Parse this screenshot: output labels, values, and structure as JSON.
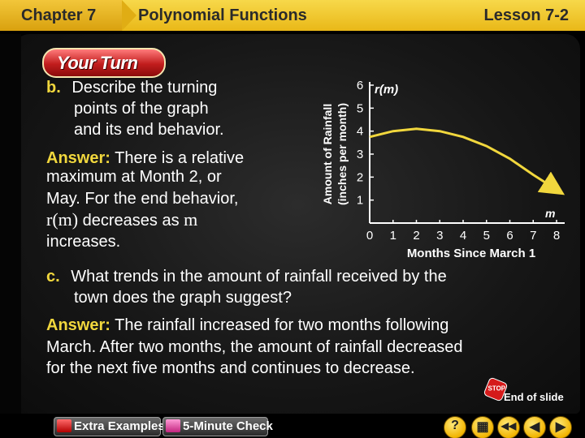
{
  "header": {
    "chapter": "Chapter 7",
    "title": "Polynomial Functions",
    "lesson": "Lesson 7-2"
  },
  "your_turn": "Your Turn",
  "part_b": {
    "label": "b.",
    "lines": [
      "Describe the turning",
      "points of the graph",
      "and its end behavior."
    ],
    "answer_label": "Answer:",
    "answer_lines": [
      "There is a relative",
      "maximum at Month 2, or",
      "May. For the end behavior,"
    ],
    "answer_math": "r(m)",
    "answer_mid": " decreases as ",
    "answer_math2": "m",
    "answer_last": "increases."
  },
  "part_c": {
    "label": "c.",
    "lines": [
      "What trends in the amount of rainfall received by the",
      "town does the graph suggest?"
    ],
    "answer_label": "Answer:",
    "answer_lines": [
      "The rainfall increased for two months following",
      "March. After two months, the amount of rainfall decreased",
      "for the next five months and continues to decrease."
    ]
  },
  "chart_data": {
    "type": "line",
    "x_axis_label": "Months Since March 1",
    "y_axis_label_1": "Amount of Rainfall",
    "y_axis_label_2": "(inches per month)",
    "func_label": "r(m)",
    "var_label": "m",
    "x_ticks": [
      "0",
      "1",
      "2",
      "3",
      "4",
      "5",
      "6",
      "7",
      "8"
    ],
    "y_ticks": [
      "1",
      "2",
      "3",
      "4",
      "5",
      "6"
    ],
    "xlim": [
      0,
      8
    ],
    "ylim": [
      0,
      6
    ],
    "curve_color": "#f1d73d",
    "series": [
      {
        "x": [
          0,
          1,
          2,
          3,
          4,
          5,
          6,
          7,
          8
        ],
        "y": [
          3.75,
          4.0,
          4.1,
          4.0,
          3.75,
          3.35,
          2.8,
          2.1,
          1.45
        ]
      }
    ]
  },
  "end_of_slide": "End of slide",
  "stop_sign": "STOP",
  "bottom_buttons": {
    "extra_examples": "Extra Examples",
    "five_minute_check": "5-Minute Check"
  },
  "nav": {
    "help": "?",
    "menu": "▦",
    "first": "◀◀",
    "prev": "◀",
    "next": "▶"
  }
}
